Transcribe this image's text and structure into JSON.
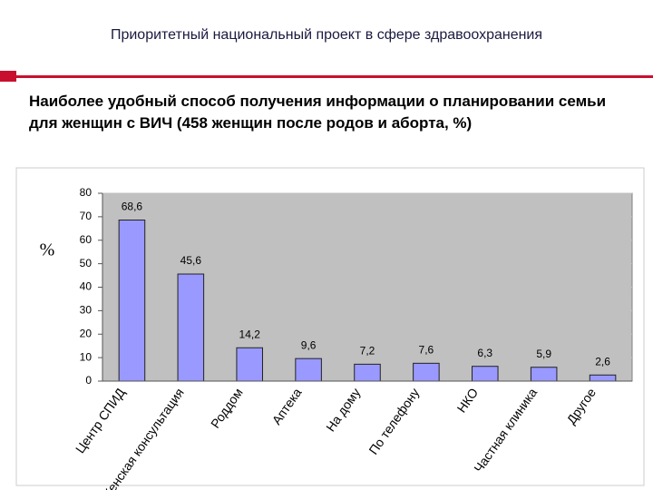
{
  "header": {
    "title": "Приоритетный национальный проект в сфере здравоохранения"
  },
  "chart_data": {
    "type": "bar",
    "title": "Наиболее удобный способ получения информации о планировании семьи для женщин с ВИЧ (458 женщин после родов и аборта, %)",
    "y_label": "%",
    "categories": [
      "Центр СПИД",
      "Женская консультация",
      "Роддом",
      "Аптека",
      "На дому",
      "По телефону",
      "НКО",
      "Частная клиника",
      "Другое"
    ],
    "values": [
      68.6,
      45.6,
      14.2,
      9.6,
      7.2,
      7.6,
      6.3,
      5.9,
      2.6
    ],
    "value_labels": [
      "68,6",
      "45,6",
      "14,2",
      "9,6",
      "7,2",
      "7,6",
      "6,3",
      "5,9",
      "2,6"
    ],
    "color": "#9999ff",
    "ylim": [
      0,
      80
    ],
    "yticks": [
      0,
      10,
      20,
      30,
      40,
      50,
      60,
      70,
      80
    ],
    "grid": true
  }
}
